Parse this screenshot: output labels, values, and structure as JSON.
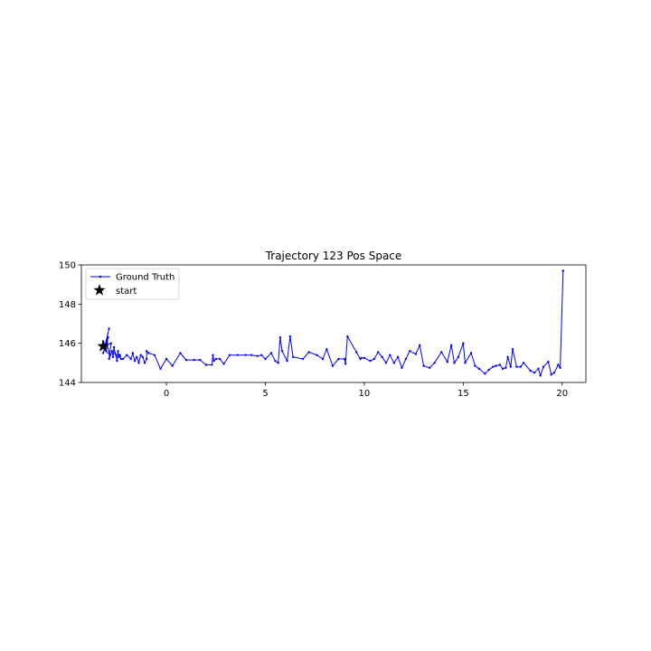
{
  "chart_data": {
    "type": "line",
    "title": "Trajectory 123 Pos Space",
    "xlabel": "",
    "ylabel": "",
    "xlim": [
      -4.3,
      21.2
    ],
    "ylim": [
      144,
      150
    ],
    "xticks": [
      0,
      5,
      10,
      15,
      20
    ],
    "yticks": [
      144,
      146,
      148,
      150
    ],
    "xtick_labels": [
      "0",
      "5",
      "10",
      "15",
      "20"
    ],
    "ytick_labels": [
      "144",
      "146",
      "148",
      "150"
    ],
    "grid": false,
    "legend": "upper-left",
    "series": [
      {
        "name": "Ground Truth",
        "color": "#0000ff",
        "marker": "dot",
        "x": [
          -3.2,
          -3.1,
          -3.3,
          -3.0,
          -3.2,
          -2.9,
          -3.1,
          -2.95,
          -3.05,
          -2.85,
          -3.0,
          -2.8,
          -2.9,
          -2.75,
          -2.7,
          -2.65,
          -2.6,
          -2.55,
          -2.5,
          -2.45,
          -2.4,
          -2.35,
          -2.3,
          -2.2,
          -2.0,
          -1.8,
          -1.7,
          -1.6,
          -1.5,
          -1.4,
          -1.3,
          -1.2,
          -1.1,
          -1.0,
          -1.0,
          -0.9,
          -0.6,
          -0.3,
          0.0,
          0.3,
          0.7,
          1.0,
          1.4,
          1.7,
          2.0,
          2.3,
          2.35,
          2.4,
          2.5,
          2.7,
          2.9,
          3.2,
          3.6,
          4.0,
          4.3,
          4.6,
          4.8,
          5.0,
          5.3,
          5.5,
          5.65,
          5.75,
          5.85,
          6.1,
          6.25,
          6.4,
          6.9,
          7.2,
          7.6,
          7.9,
          8.1,
          8.4,
          8.7,
          9.0,
          9.05,
          9.15,
          9.6,
          9.8,
          9.85,
          10.0,
          10.3,
          10.5,
          10.7,
          10.9,
          11.1,
          11.3,
          11.5,
          11.7,
          11.9,
          12.1,
          12.3,
          12.6,
          12.8,
          13.0,
          13.3,
          13.55,
          13.9,
          14.2,
          14.4,
          14.55,
          14.75,
          15.0,
          15.1,
          15.4,
          15.6,
          15.8,
          16.1,
          16.3,
          16.5,
          16.65,
          16.85,
          17.0,
          17.15,
          17.25,
          17.4,
          17.5,
          17.7,
          17.9,
          18.05,
          18.4,
          18.6,
          18.8,
          18.9,
          19.05,
          19.3,
          19.45,
          19.6,
          19.8,
          19.9,
          20.05
        ],
        "y": [
          146.1,
          145.9,
          145.7,
          146.0,
          145.5,
          146.75,
          145.8,
          146.3,
          145.6,
          145.4,
          145.9,
          146.0,
          145.2,
          145.6,
          145.3,
          145.8,
          145.5,
          145.4,
          145.1,
          145.6,
          145.3,
          145.4,
          145.2,
          145.2,
          145.4,
          145.2,
          145.5,
          145.1,
          145.3,
          145.0,
          145.4,
          145.3,
          145.0,
          145.2,
          145.6,
          145.5,
          145.4,
          144.7,
          145.2,
          144.85,
          145.5,
          145.15,
          145.15,
          145.15,
          144.9,
          144.9,
          145.4,
          145.1,
          145.2,
          145.2,
          144.95,
          145.4,
          145.4,
          145.4,
          145.4,
          145.35,
          145.4,
          145.2,
          145.5,
          145.1,
          145.0,
          146.3,
          145.6,
          145.1,
          146.35,
          145.3,
          145.2,
          145.55,
          145.4,
          145.2,
          145.7,
          144.85,
          145.2,
          145.2,
          144.95,
          146.35,
          145.55,
          145.2,
          145.25,
          145.25,
          145.1,
          145.2,
          145.55,
          145.3,
          145.0,
          145.4,
          145.0,
          145.3,
          144.75,
          145.2,
          145.6,
          145.45,
          145.9,
          144.85,
          144.75,
          145.0,
          145.55,
          145.05,
          145.9,
          145.0,
          145.3,
          146.0,
          145.0,
          145.5,
          144.85,
          144.7,
          144.45,
          144.65,
          144.8,
          144.85,
          144.9,
          144.7,
          144.75,
          145.3,
          144.8,
          145.7,
          144.8,
          144.8,
          145.0,
          144.6,
          144.5,
          144.7,
          144.35,
          144.8,
          145.05,
          144.4,
          144.5,
          144.9,
          144.75,
          149.7
        ]
      }
    ],
    "annotations": [
      {
        "name": "start",
        "x": -3.2,
        "y": 145.85,
        "marker": "star",
        "color": "#000000"
      }
    ]
  }
}
